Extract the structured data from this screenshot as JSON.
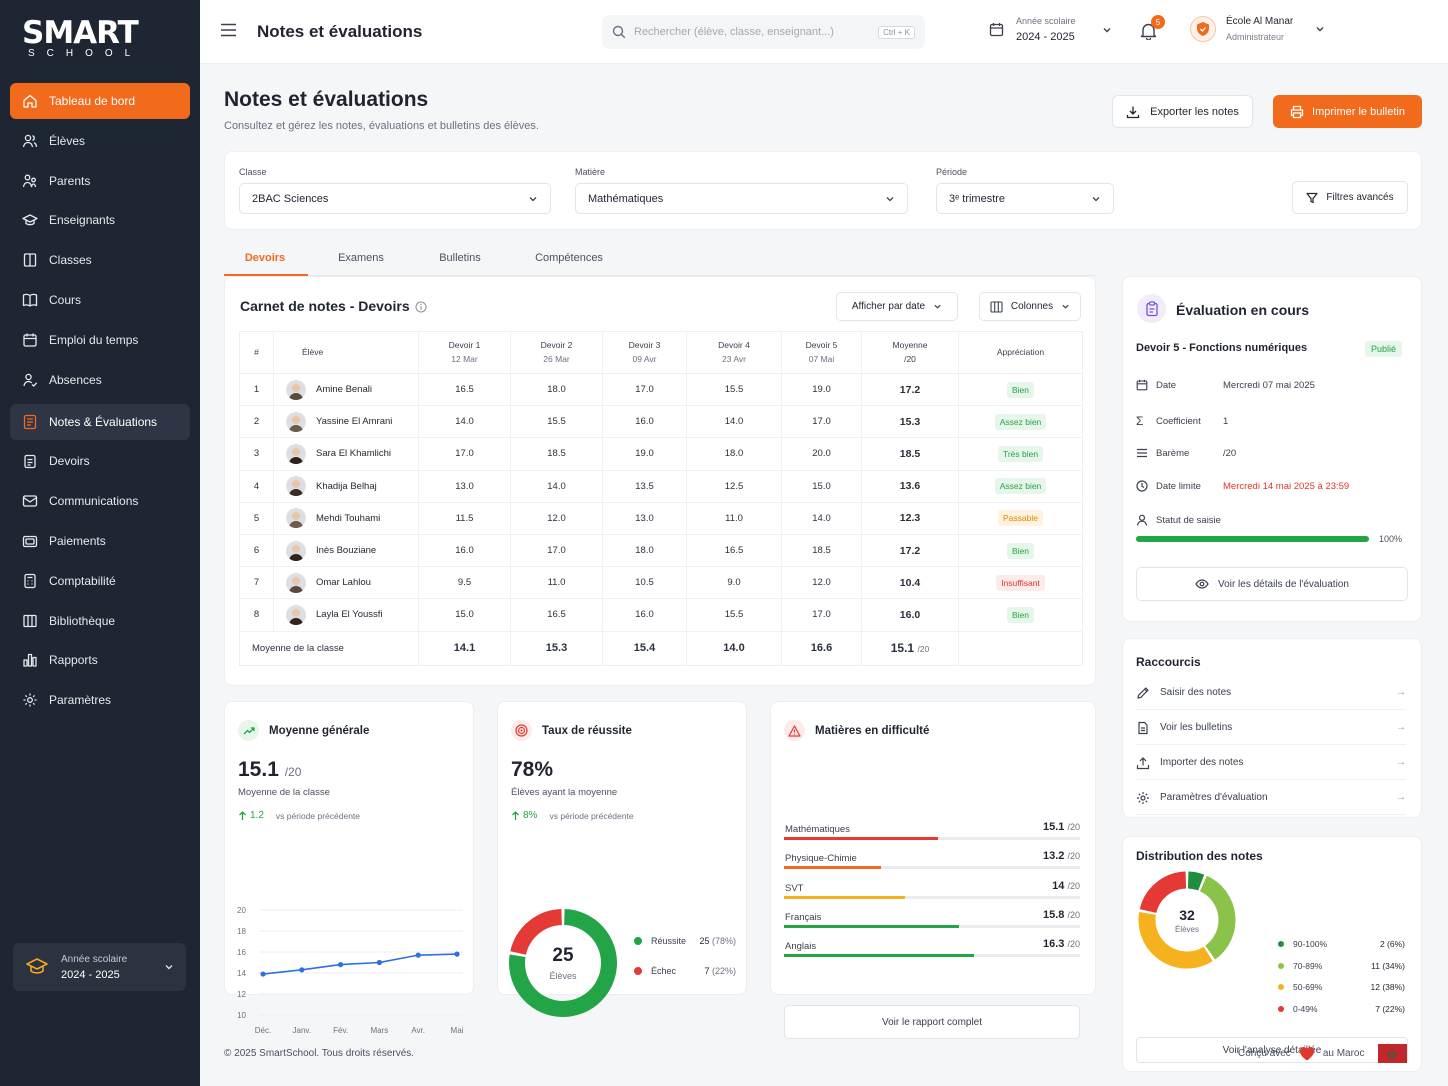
{
  "sidebar": {
    "logo": {
      "main": "SMART",
      "sub": "SCHOOL"
    },
    "items": [
      {
        "label": "Tableau de bord",
        "icon": "home-icon",
        "state": "active"
      },
      {
        "label": "Élèves",
        "icon": "users-icon"
      },
      {
        "label": "Parents",
        "icon": "parents-icon"
      },
      {
        "label": "Enseignants",
        "icon": "graduation-cap-icon"
      },
      {
        "label": "Classes",
        "icon": "door-icon"
      },
      {
        "label": "Cours",
        "icon": "book-open-icon"
      },
      {
        "label": "Emploi du temps",
        "icon": "calendar-icon"
      },
      {
        "label": "Absences",
        "icon": "user-check-icon"
      },
      {
        "label": "Notes & Évaluations",
        "icon": "notes-icon",
        "state": "current"
      },
      {
        "label": "Devoirs",
        "icon": "clipboard-icon"
      },
      {
        "label": "Communications",
        "icon": "mail-icon"
      },
      {
        "label": "Paiements",
        "icon": "wallet-icon"
      },
      {
        "label": "Comptabilité",
        "icon": "calculator-icon"
      },
      {
        "label": "Bibliothèque",
        "icon": "library-icon"
      },
      {
        "label": "Rapports",
        "icon": "bar-chart-icon"
      },
      {
        "label": "Paramètres",
        "icon": "gear-icon"
      }
    ],
    "school_year": {
      "label": "Année scolaire",
      "value": "2024 - 2025"
    }
  },
  "header": {
    "title": "Notes et évaluations",
    "search_placeholder": "Rechercher (élève, classe, enseignant...)",
    "search_shortcut": "Ctrl + K",
    "school_year_label": "Année scolaire",
    "school_year_value": "2024 - 2025",
    "notifications_count": "5",
    "user_name": "École Al Manar",
    "user_role": "Administrateur"
  },
  "page": {
    "title": "Notes et évaluations",
    "subtitle": "Consultez et gérez les notes, évaluations et bulletins des élèves.",
    "export_label": "Exporter les notes",
    "print_label": "Imprimer le bulletin"
  },
  "filters": {
    "class_label": "Classe",
    "class_value": "2BAC Sciences",
    "subject_label": "Matière",
    "subject_value": "Mathématiques",
    "period_label": "Période",
    "period_value": "3ᵉ trimestre",
    "advanced_label": "Filtres avancés"
  },
  "tabs": [
    "Devoirs",
    "Examens",
    "Bulletins",
    "Compétences"
  ],
  "gradebook": {
    "title": "Carnet de notes - Devoirs",
    "sort_label": "Afficher par date",
    "columns_label": "Colonnes",
    "headers": {
      "num": "#",
      "student": "Élève",
      "assignments": [
        {
          "name": "Devoir 1",
          "date": "12 Mar"
        },
        {
          "name": "Devoir 2",
          "date": "26 Mar"
        },
        {
          "name": "Devoir 3",
          "date": "09 Avr"
        },
        {
          "name": "Devoir 4",
          "date": "23 Avr"
        },
        {
          "name": "Devoir 5",
          "date": "07 Mai"
        }
      ],
      "average": "Moyenne",
      "average_scale": "/20",
      "appreciation": "Appréciation"
    },
    "rows": [
      {
        "num": "1",
        "name": "Amine Benali",
        "grades": [
          "16.5",
          "18.0",
          "17.0",
          "15.5",
          "19.0"
        ],
        "avg": "17.2",
        "appr": "Bien",
        "appr_color": "#22a447",
        "appr_bg": "#e6f6ea",
        "avatar_bg": "#5b4a3e"
      },
      {
        "num": "2",
        "name": "Yassine El Amrani",
        "grades": [
          "14.0",
          "15.5",
          "16.0",
          "14.0",
          "17.0"
        ],
        "avg": "15.3",
        "appr": "Assez bien",
        "appr_color": "#22a447",
        "appr_bg": "#e6f6ea",
        "avatar_bg": "#6b5a4e"
      },
      {
        "num": "3",
        "name": "Sara El Khamlichi",
        "grades": [
          "17.0",
          "18.5",
          "19.0",
          "18.0",
          "20.0"
        ],
        "avg": "18.5",
        "appr": "Très bien",
        "appr_color": "#22a447",
        "appr_bg": "#e6f6ea",
        "avatar_bg": "#2e221c"
      },
      {
        "num": "4",
        "name": "Khadija Belhaj",
        "grades": [
          "13.0",
          "14.0",
          "13.5",
          "12.5",
          "15.0"
        ],
        "avg": "13.6",
        "appr": "Assez bien",
        "appr_color": "#22a447",
        "appr_bg": "#e6f6ea",
        "avatar_bg": "#3a2a22"
      },
      {
        "num": "5",
        "name": "Mehdi Touhami",
        "grades": [
          "11.5",
          "12.0",
          "13.0",
          "11.0",
          "14.0"
        ],
        "avg": "12.3",
        "appr": "Passable",
        "appr_color": "#e08a00",
        "appr_bg": "#fff3df",
        "avatar_bg": "#6e5c50"
      },
      {
        "num": "6",
        "name": "Inès Bouziane",
        "grades": [
          "16.0",
          "17.0",
          "18.0",
          "16.5",
          "18.5"
        ],
        "avg": "17.2",
        "appr": "Bien",
        "appr_color": "#22a447",
        "appr_bg": "#e6f6ea",
        "avatar_bg": "#2f241e"
      },
      {
        "num": "7",
        "name": "Omar Lahlou",
        "grades": [
          "9.5",
          "11.0",
          "10.5",
          "9.0",
          "12.0"
        ],
        "avg": "10.4",
        "appr": "Insuffisant",
        "appr_color": "#e0372f",
        "appr_bg": "#fdebea",
        "avatar_bg": "#5a4a40"
      },
      {
        "num": "8",
        "name": "Layla El Youssfi",
        "grades": [
          "15.0",
          "16.5",
          "16.0",
          "15.5",
          "17.0"
        ],
        "avg": "16.0",
        "appr": "Bien",
        "appr_color": "#22a447",
        "appr_bg": "#e6f6ea",
        "avatar_bg": "#33261f"
      }
    ],
    "footer": {
      "label": "Moyenne de la classe",
      "values": [
        "14.1",
        "15.3",
        "15.4",
        "14.0",
        "16.6"
      ],
      "avg": "15.1",
      "avg_scale": "/20"
    }
  },
  "evaluation": {
    "title": "Évaluation en cours",
    "name": "Devoir 5 - Fonctions numériques",
    "status": "Publié",
    "date_label": "Date",
    "date_value": "Mercredi 07 mai 2025",
    "coef_label": "Coefficient",
    "coef_value": "1",
    "scale_label": "Barème",
    "scale_value": "/20",
    "deadline_label": "Date limite",
    "deadline_value": "Mercredi 14 mai 2025 à 23:59",
    "entry_label": "Statut de saisie",
    "entry_pct": "100%",
    "entry_fraction": 1.0,
    "details_label": "Voir les détails de l'évaluation"
  },
  "shortcuts": {
    "title": "Raccourcis",
    "items": [
      {
        "label": "Saisir des notes",
        "icon": "pencil-icon"
      },
      {
        "label": "Voir les bulletins",
        "icon": "document-icon"
      },
      {
        "label": "Importer des notes",
        "icon": "upload-icon"
      },
      {
        "label": "Paramètres d'évaluation",
        "icon": "gear-icon"
      }
    ]
  },
  "distribution": {
    "title": "Distribution des notes",
    "total": "32",
    "total_label": "Élèves",
    "items": [
      {
        "label": "90-100%",
        "value": "2 (6%)",
        "count": 2,
        "color": "#1e8e3e"
      },
      {
        "label": "70-89%",
        "value": "11 (34%)",
        "count": 11,
        "color": "#8bc34a"
      },
      {
        "label": "50-69%",
        "value": "12 (38%)",
        "count": 12,
        "color": "#f5b21e"
      },
      {
        "label": "0-49%",
        "value": "7 (22%)",
        "count": 7,
        "color": "#e53935"
      }
    ],
    "link": "Voir l'analyse détaillée"
  },
  "avg_card": {
    "title": "Moyenne générale",
    "value": "15.1",
    "scale": "/20",
    "sub": "Moyenne de la classe",
    "delta": "1.2",
    "delta_label": "vs période précédente"
  },
  "success_card": {
    "title": "Taux de réussite",
    "value": "78%",
    "sub": "Élèves ayant la moyenne",
    "delta": "8%",
    "delta_label": "vs période précédente",
    "total": "25",
    "total_label": "Élèves",
    "items": [
      {
        "label": "Réussite",
        "value": "25",
        "pct": "(78%)",
        "fraction": 0.78,
        "color": "#22a447"
      },
      {
        "label": "Échec",
        "value": "7",
        "pct": "(22%)",
        "fraction": 0.22,
        "color": "#e53935"
      }
    ]
  },
  "difficulty_card": {
    "title": "Matières en difficulté",
    "scale": "/20",
    "items": [
      {
        "name": "Mathématiques",
        "value": 15.1,
        "color": "#e53935"
      },
      {
        "name": "Physique-Chimie",
        "value": 13.2,
        "color": "#f26a1b"
      },
      {
        "name": "SVT",
        "value": 14.0,
        "color": "#f5b21e"
      },
      {
        "name": "Français",
        "value": 15.8,
        "color": "#22a447"
      },
      {
        "name": "Anglais",
        "value": 16.3,
        "color": "#22a447"
      }
    ],
    "link": "Voir le rapport complet"
  },
  "chart_data": {
    "type": "line",
    "categories": [
      "Déc.",
      "Janv.",
      "Fév.",
      "Mars",
      "Avr.",
      "Mai"
    ],
    "values": [
      13.9,
      14.3,
      14.8,
      15.0,
      15.7,
      15.8
    ],
    "yticks": [
      10,
      12,
      14,
      16,
      18,
      20
    ],
    "ylim": [
      10,
      20
    ],
    "color": "#2f6fe0",
    "title": "",
    "xlabel": "",
    "ylabel": ""
  },
  "footer": {
    "copyright": "© 2025 SmartSchool. Tous droits réservés.",
    "made_with": "Conçu avec",
    "made_in": "au Maroc"
  },
  "colors": {
    "accent": "#f26a1b",
    "sidebar": "#1f2633",
    "success": "#22a447",
    "danger": "#e53935"
  }
}
